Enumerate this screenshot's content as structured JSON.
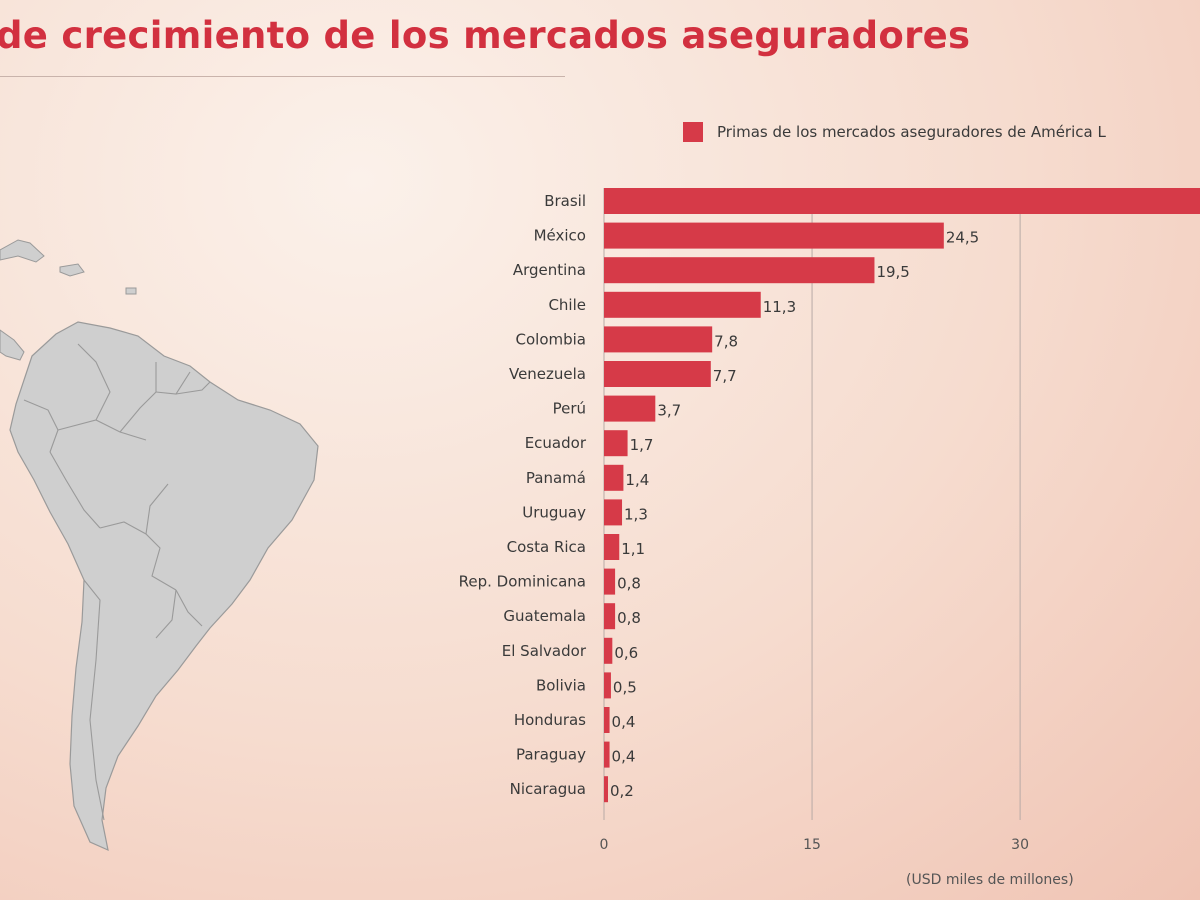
{
  "header": {
    "title": "de crecimiento de los mercados aseguradores"
  },
  "legend": {
    "label": "Primas de los mercados aseguradores de América L",
    "color": "#d63a48"
  },
  "map": {
    "land_color": "#cfcfcf",
    "border_color": "#9a9a9a"
  },
  "chart_data": {
    "type": "bar",
    "orientation": "horizontal",
    "categories": [
      "Brasil",
      "México",
      "Argentina",
      "Chile",
      "Colombia",
      "Venezuela",
      "Perú",
      "Ecuador",
      "Panamá",
      "Uruguay",
      "Costa Rica",
      "Rep. Dominicana",
      "Guatemala",
      "El Salvador",
      "Bolivia",
      "Honduras",
      "Paraguay",
      "Nicaragua"
    ],
    "values": [
      44.5,
      24.5,
      19.5,
      11.3,
      7.8,
      7.7,
      3.7,
      1.7,
      1.4,
      1.3,
      1.1,
      0.8,
      0.8,
      0.6,
      0.5,
      0.4,
      0.4,
      0.2
    ],
    "value_labels": [
      "",
      "24,5",
      "19,5",
      "11,3",
      "7,8",
      "7,7",
      "3,7",
      "1,7",
      "1,4",
      "1,3",
      "1,1",
      "0,8",
      "0,8",
      "0,6",
      "0,5",
      "0,4",
      "0,4",
      "0,2"
    ],
    "xticks": [
      0,
      15,
      30
    ],
    "xlim": [
      0,
      43
    ],
    "xlabel": "(USD miles de millones)",
    "grid": true,
    "bar_color": "#d63a48"
  }
}
